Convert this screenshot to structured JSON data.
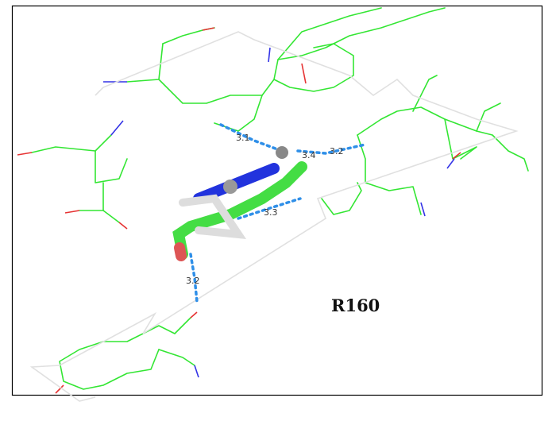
{
  "distances": [
    {
      "label": "3.1"
    },
    {
      "label": "3.4"
    },
    {
      "label": "3.2"
    },
    {
      "label": "3.3"
    },
    {
      "label": "3.2"
    }
  ],
  "residue_label": "R160"
}
